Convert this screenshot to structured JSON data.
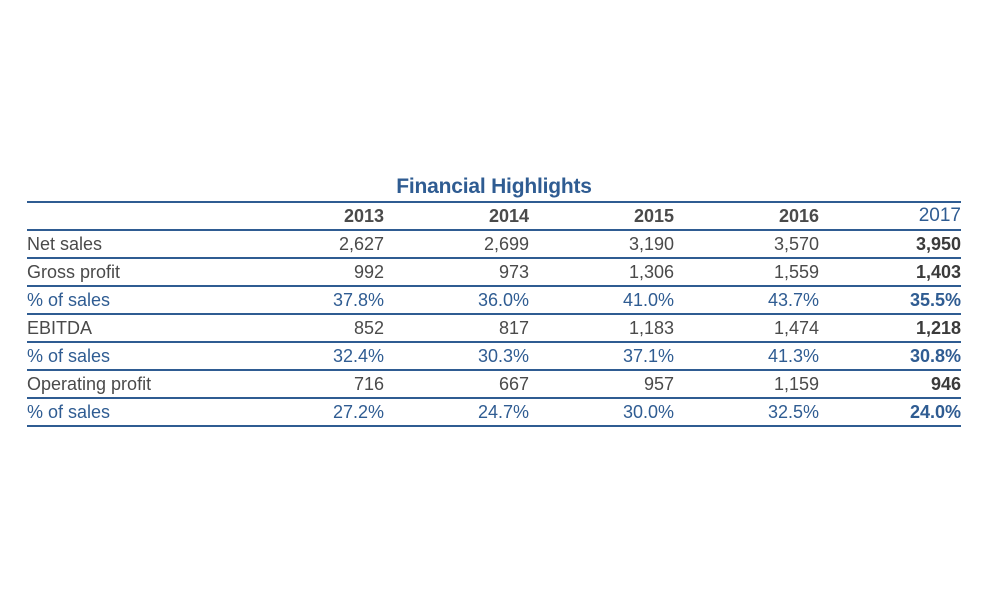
{
  "chart_data": {
    "type": "table",
    "title": "Financial Highlights",
    "columns": [
      "2013",
      "2014",
      "2015",
      "2016",
      "2017"
    ],
    "highlight_column": "2017",
    "rows": [
      {
        "label": "Net sales",
        "kind": "value",
        "values": [
          "2,627",
          "2,699",
          "3,190",
          "3,570",
          "3,950"
        ]
      },
      {
        "label": "Gross profit",
        "kind": "value",
        "values": [
          "992",
          "973",
          "1,306",
          "1,559",
          "1,403"
        ]
      },
      {
        "label": "% of sales",
        "kind": "percent",
        "values": [
          "37.8%",
          "36.0%",
          "41.0%",
          "43.7%",
          "35.5%"
        ]
      },
      {
        "label": "EBITDA",
        "kind": "value",
        "values": [
          "852",
          "817",
          "1,183",
          "1,474",
          "1,218"
        ]
      },
      {
        "label": "% of sales",
        "kind": "percent",
        "values": [
          "32.4%",
          "30.3%",
          "37.1%",
          "41.3%",
          "30.8%"
        ]
      },
      {
        "label": "Operating profit",
        "kind": "value",
        "values": [
          "716",
          "667",
          "957",
          "1,159",
          "946"
        ]
      },
      {
        "label": "% of sales",
        "kind": "percent",
        "values": [
          "27.2%",
          "24.7%",
          "30.0%",
          "32.5%",
          "24.0%"
        ]
      }
    ]
  },
  "colors": {
    "accent": "#2f5c92",
    "text": "#4a4a4a"
  }
}
